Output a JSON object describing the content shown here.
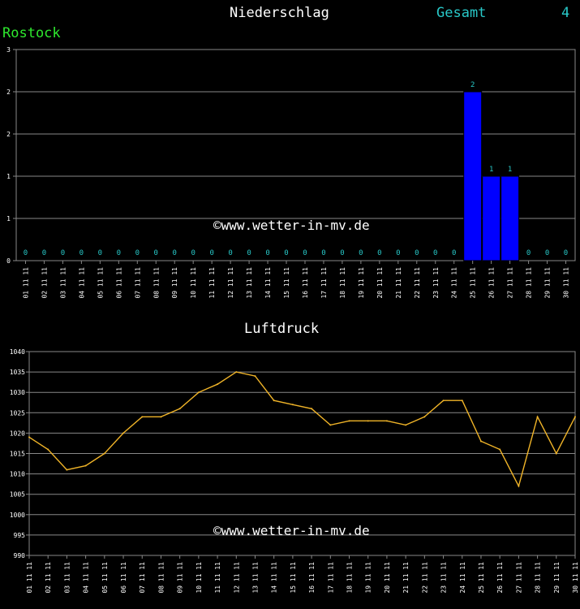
{
  "header": {
    "title": "Niederschlag",
    "total_label": "Gesamt",
    "total_value": "4",
    "station": "Rostock"
  },
  "watermark": "©www.wetter-in-mv.de",
  "colors": {
    "background": "#000000",
    "grid": "#888888",
    "bar": "#0000ff",
    "value_label": "#28c8c8",
    "line": "#f0b428",
    "station": "#2ee82e"
  },
  "chart_data": [
    {
      "type": "bar",
      "title": "Niederschlag",
      "categories": [
        "01 11 11",
        "02 11 11",
        "03 11 11",
        "04 11 11",
        "05 11 11",
        "06 11 11",
        "07 11 11",
        "08 11 11",
        "09 11 11",
        "10 11 11",
        "11 11 11",
        "12 11 11",
        "13 11 11",
        "14 11 11",
        "15 11 11",
        "16 11 11",
        "17 11 11",
        "18 11 11",
        "19 11 11",
        "20 11 11",
        "21 11 11",
        "22 11 11",
        "23 11 11",
        "24 11 11",
        "25 11 11",
        "26 11 11",
        "27 11 11",
        "28 11 11",
        "29 11 11",
        "30 11 11"
      ],
      "values": [
        0,
        0,
        0,
        0,
        0,
        0,
        0,
        0,
        0,
        0,
        0,
        0,
        0,
        0,
        0,
        0,
        0,
        0,
        0,
        0,
        0,
        0,
        0,
        0,
        2,
        1,
        1,
        0,
        0,
        0
      ],
      "value_labels": [
        "0",
        "0",
        "0",
        "0",
        "0",
        "0",
        "0",
        "0",
        "0",
        "0",
        "0",
        "0",
        "0",
        "0",
        "0",
        "0",
        "0",
        "0",
        "0",
        "0",
        "0",
        "0",
        "0",
        "0",
        "2",
        "1",
        "1",
        "0",
        "0",
        "0"
      ],
      "yticks": [
        "3",
        "2",
        "2",
        "1",
        "1",
        "0"
      ],
      "ylim": [
        0,
        2.5
      ],
      "grid": true
    },
    {
      "type": "line",
      "title": "Luftdruck",
      "categories": [
        "01 11 11",
        "02 11 11",
        "03 11 11",
        "04 11 11",
        "05 11 11",
        "06 11 11",
        "07 11 11",
        "08 11 11",
        "09 11 11",
        "10 11 11",
        "11 11 11",
        "12 11 11",
        "13 11 11",
        "14 11 11",
        "15 11 11",
        "16 11 11",
        "17 11 11",
        "18 11 11",
        "19 11 11",
        "20 11 11",
        "21 11 11",
        "22 11 11",
        "23 11 11",
        "24 11 11",
        "25 11 11",
        "26 11 11",
        "27 11 11",
        "28 11 11",
        "29 11 11",
        "30 11 11"
      ],
      "values": [
        1019,
        1016,
        1011,
        1012,
        1015,
        1020,
        1024,
        1024,
        1026,
        1030,
        1032,
        1035,
        1034,
        1028,
        1027,
        1026,
        1022,
        1023,
        1023,
        1023,
        1022,
        1024,
        1028,
        1028,
        1018,
        1016,
        1007,
        1024,
        1015,
        1024
      ],
      "yticks": [
        1040,
        1035,
        1030,
        1025,
        1020,
        1015,
        1010,
        1005,
        1000,
        995,
        990
      ],
      "ylim": [
        990,
        1040
      ],
      "grid": true
    }
  ]
}
